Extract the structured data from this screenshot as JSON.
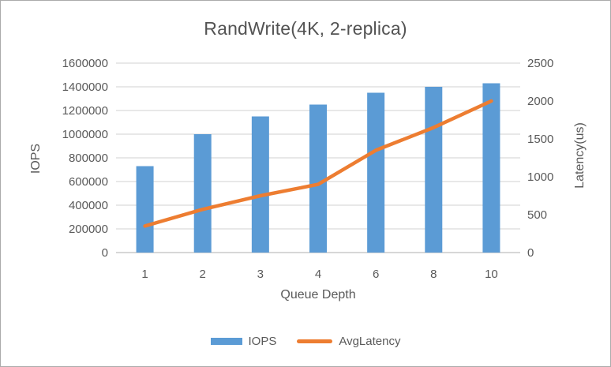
{
  "chart_data": {
    "type": "bar+line",
    "title": "RandWrite(4K, 2-replica)",
    "xlabel": "Queue Depth",
    "ylabel_left": "IOPS",
    "ylabel_right": "Latency(us)",
    "categories": [
      "1",
      "2",
      "3",
      "4",
      "6",
      "8",
      "10"
    ],
    "series": [
      {
        "name": "IOPS",
        "type": "bar",
        "axis": "left",
        "color": "#5B9BD5",
        "values": [
          730000,
          1000000,
          1150000,
          1250000,
          1350000,
          1400000,
          1430000
        ]
      },
      {
        "name": "AvgLatency",
        "type": "line",
        "axis": "right",
        "color": "#ED7D31",
        "values": [
          350,
          570,
          750,
          900,
          1350,
          1650,
          2000
        ]
      }
    ],
    "left_axis": {
      "min": 0,
      "max": 1600000,
      "step": 200000,
      "tick_labels": [
        "0",
        "200000",
        "400000",
        "600000",
        "800000",
        "1000000",
        "1200000",
        "1400000",
        "1600000"
      ]
    },
    "right_axis": {
      "min": 0,
      "max": 2500,
      "step": 500,
      "tick_labels": [
        "0",
        "500",
        "1000",
        "1500",
        "2000",
        "2500"
      ]
    },
    "grid": true,
    "legend_position": "bottom",
    "colors": {
      "gridline": "#d9d9d9",
      "axis_line": "#bfbfbf",
      "text": "#595959"
    }
  }
}
